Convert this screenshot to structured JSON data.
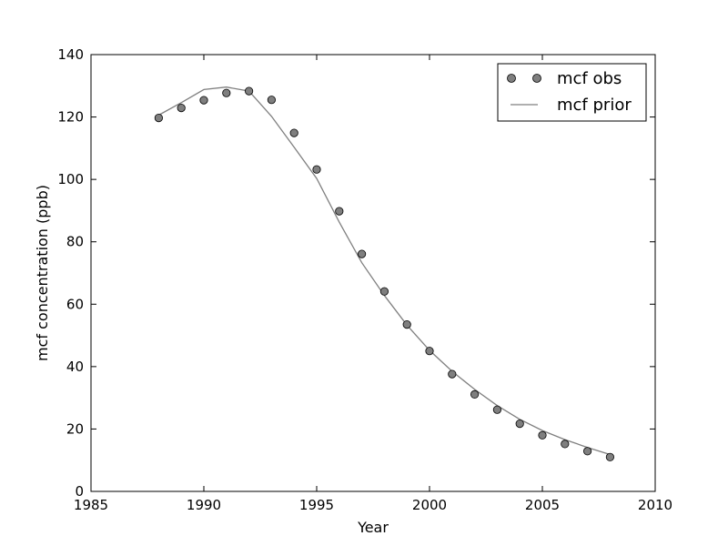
{
  "chart_data": {
    "type": "line",
    "xlabel": "Year",
    "ylabel": "mcf concentration (ppb)",
    "xlim": [
      1985,
      2010
    ],
    "ylim": [
      0,
      140
    ],
    "xticks": [
      "1985",
      "1990",
      "1995",
      "2000",
      "2005",
      "2010"
    ],
    "yticks": [
      "0",
      "20",
      "40",
      "60",
      "80",
      "100",
      "120",
      "140"
    ],
    "grid": false,
    "legend_position": "top-right",
    "series": [
      {
        "name": "mcf obs",
        "kind": "scatter",
        "color": "#7f7f7f",
        "x": [
          1988,
          1989,
          1990,
          1991,
          1992,
          1993,
          1994,
          1995,
          1996,
          1997,
          1998,
          1999,
          2000,
          2001,
          2002,
          2003,
          2004,
          2005,
          2006,
          2007,
          2008
        ],
        "y": [
          119.7,
          122.9,
          125.4,
          127.7,
          128.3,
          125.5,
          114.9,
          103.2,
          89.8,
          76.1,
          64.1,
          53.5,
          45.0,
          37.6,
          31.1,
          26.2,
          21.7,
          18.0,
          15.2,
          12.9,
          11.0
        ]
      },
      {
        "name": "mcf prior",
        "kind": "line",
        "color": "#7f7f7f",
        "x": [
          1988,
          1989,
          1990,
          1991,
          1992,
          1993,
          1994,
          1995,
          1996,
          1997,
          1998,
          1999,
          2000,
          2001,
          2002,
          2003,
          2004,
          2005,
          2006,
          2007,
          2008
        ],
        "y": [
          120.6,
          124.6,
          128.8,
          129.6,
          128.3,
          120.2,
          110.3,
          100.3,
          86.3,
          73.3,
          62.8,
          53.3,
          45.2,
          38.5,
          32.7,
          27.5,
          23.1,
          19.5,
          16.6,
          14.1,
          11.8
        ]
      }
    ]
  }
}
